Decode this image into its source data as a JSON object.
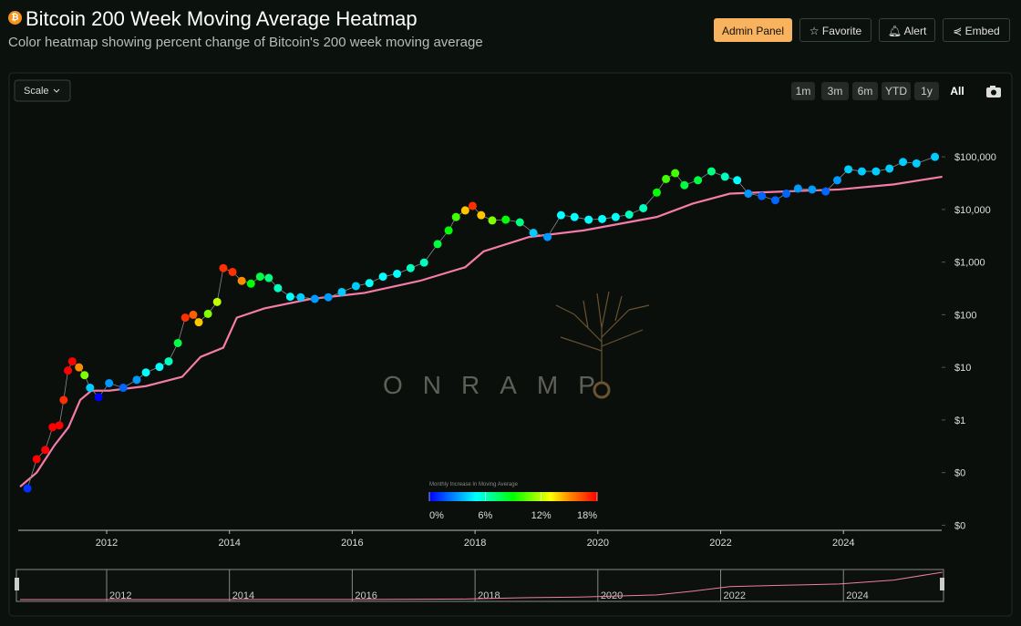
{
  "header": {
    "title": "Bitcoin 200 Week Moving Average Heatmap",
    "subtitle": "Color heatmap showing percent change of Bitcoin's 200 week moving average",
    "buttons": [
      "Admin Panel",
      "Favorite",
      "Alert",
      "Embed"
    ]
  },
  "toolbar": {
    "scale": "Scale",
    "ranges": [
      "1m",
      "3m",
      "6m",
      "YTD",
      "1y",
      "All"
    ]
  },
  "watermark": "ONRAMP",
  "chart_data": {
    "type": "scatter-line",
    "log_scale": true,
    "grid": false,
    "xlim": [
      2010.56,
      2025.6
    ],
    "xticks": [
      2012,
      2014,
      2016,
      2018,
      2020,
      2022,
      2024
    ],
    "ylim": [
      0.008,
      800000
    ],
    "yticks": [
      {
        "value": 0.01,
        "label": "$0"
      },
      {
        "value": 0.1,
        "label": "$0"
      },
      {
        "value": 1,
        "label": "$1"
      },
      {
        "value": 10,
        "label": "$10"
      },
      {
        "value": 100,
        "label": "$100"
      },
      {
        "value": 1000,
        "label": "$1,000"
      },
      {
        "value": 10000,
        "label": "$10,000"
      },
      {
        "value": 100000,
        "label": "$100,000"
      }
    ],
    "series": [
      {
        "color": "#8a8a8a",
        "x": [
          2010.71,
          2010.86,
          2011.0,
          2011.12,
          2011.23,
          2011.3,
          2011.37,
          2011.44,
          2011.55,
          2011.64,
          2011.73,
          2011.87,
          2012.04,
          2012.27,
          2012.49,
          2012.64,
          2012.86,
          2013.01,
          2013.16,
          2013.28,
          2013.41,
          2013.5,
          2013.65,
          2013.8,
          2013.9,
          2014.05,
          2014.2,
          2014.35,
          2014.5,
          2014.64,
          2014.79,
          2014.99,
          2015.16,
          2015.39,
          2015.61,
          2015.83,
          2016.06,
          2016.28,
          2016.5,
          2016.73,
          2016.95,
          2017.17,
          2017.39,
          2017.57,
          2017.69,
          2017.84,
          2017.96,
          2018.1,
          2018.28,
          2018.5,
          2018.73,
          2018.95,
          2019.18,
          2019.4,
          2019.62,
          2019.85,
          2020.07,
          2020.29,
          2020.51,
          2020.74,
          2020.96,
          2021.11,
          2021.26,
          2021.41,
          2021.63,
          2021.85,
          2022.07,
          2022.27,
          2022.45,
          2022.67,
          2022.89,
          2023.07,
          2023.26,
          2023.49,
          2023.71,
          2023.9,
          2024.08,
          2024.3,
          2024.53,
          2024.75,
          2024.97,
          2025.19,
          2025.49
        ],
        "values": [
          0.05,
          0.18,
          0.27,
          0.73,
          0.79,
          2.4,
          8.7,
          13,
          10,
          7.1,
          4.1,
          2.7,
          5,
          4.1,
          5.8,
          8,
          10.2,
          13,
          29,
          88,
          100,
          72,
          104,
          175,
          770,
          650,
          440,
          390,
          530,
          500,
          320,
          220,
          215,
          200,
          215,
          270,
          350,
          400,
          530,
          600,
          770,
          980,
          2200,
          4000,
          7200,
          9600,
          11700,
          7800,
          6200,
          6400,
          5700,
          3600,
          3000,
          7800,
          7200,
          6400,
          6600,
          7200,
          8000,
          10600,
          21000,
          38000,
          49000,
          29000,
          36000,
          53000,
          42000,
          36000,
          20000,
          18000,
          15000,
          20000,
          25000,
          24000,
          22000,
          36000,
          58000,
          53000,
          53000,
          60000,
          80000,
          75000,
          100000
        ],
        "heat": [
          1,
          18,
          18,
          18,
          18,
          17,
          18,
          18,
          15,
          11,
          4,
          0,
          3,
          2,
          3,
          5,
          5,
          6,
          8,
          17,
          16,
          14,
          11,
          12,
          17,
          17,
          15,
          9,
          8,
          7,
          6,
          5,
          4,
          3,
          3,
          4,
          4,
          5,
          5,
          5,
          6,
          6,
          8,
          9,
          10,
          14,
          17,
          14,
          11,
          9,
          7,
          4,
          3,
          5,
          5,
          5,
          5,
          5,
          6,
          6,
          9,
          10,
          10,
          8,
          8,
          7,
          6,
          5,
          3,
          2,
          2,
          2,
          3,
          3,
          2,
          3,
          4,
          4,
          4,
          4,
          4,
          4,
          4
        ]
      },
      {
        "color": "#f47ca8",
        "x": [
          2010.59,
          2010.86,
          2011.15,
          2011.38,
          2011.57,
          2011.75,
          2012.04,
          2012.64,
          2013.23,
          2013.53,
          2013.9,
          2014.12,
          2014.57,
          2015.31,
          2016.2,
          2017.1,
          2017.84,
          2018.14,
          2018.88,
          2019.77,
          2020.96,
          2021.55,
          2022.15,
          2023.04,
          2023.93,
          2024.82,
          2025.61
        ],
        "values": [
          0.054,
          0.1,
          0.33,
          0.73,
          2.4,
          3.6,
          3.6,
          4.4,
          6.6,
          15.8,
          23.7,
          88,
          132,
          198,
          260,
          440,
          800,
          1600,
          3000,
          4000,
          7200,
          13000,
          20000,
          22000,
          24000,
          30000,
          42000
        ]
      }
    ],
    "colorbar": {
      "title": "Monthly Increase In Moving Average",
      "range": [
        0,
        18
      ],
      "ticks": [
        {
          "value": 0,
          "label": "0%"
        },
        {
          "value": 6,
          "label": "6%"
        },
        {
          "value": 12,
          "label": "12%"
        },
        {
          "value": 18,
          "label": "18%"
        }
      ],
      "stops": [
        {
          "value": 0,
          "color": "#0000ff"
        },
        {
          "value": 5,
          "color": "#00ffff"
        },
        {
          "value": 9,
          "color": "#00ff00"
        },
        {
          "value": 13,
          "color": "#ffff00"
        },
        {
          "value": 15,
          "color": "#ff8c00"
        },
        {
          "value": 18,
          "color": "#ff0000"
        }
      ]
    }
  }
}
